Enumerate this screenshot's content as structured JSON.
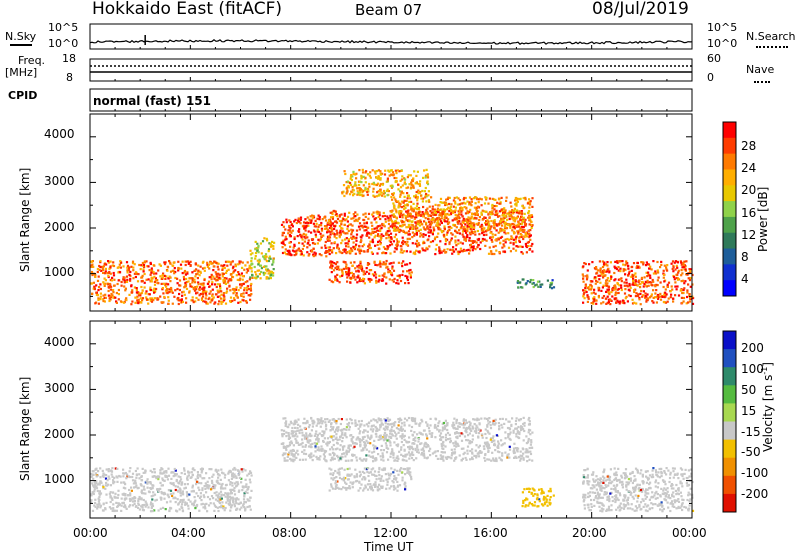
{
  "header": {
    "site": "Hokkaido East (fitACF)",
    "beam": "Beam 07",
    "date": "08/Jul/2019"
  },
  "noise_panel": {
    "left_label": "N.Sky",
    "right_label": "N.Search",
    "left_ticks": [
      "10^5",
      "10^0"
    ],
    "right_ticks": [
      "10^5",
      "10^0"
    ]
  },
  "freq_panel": {
    "left_label_1": "Freq.",
    "left_label_2": "[MHz]",
    "left_ticks": [
      "18",
      "8"
    ],
    "right_label": "Nave",
    "right_ticks": [
      "60",
      "0"
    ]
  },
  "cpid_panel": {
    "label": "CPID",
    "value": "normal (fast) 151"
  },
  "power_panel": {
    "ylabel": "Slant Range [km]",
    "yticks": [
      "4000",
      "3000",
      "2000",
      "1000"
    ],
    "colorbar_label": "Power [dB]",
    "colorbar_ticks": [
      "28",
      "24",
      "20",
      "16",
      "12",
      "8",
      "4"
    ],
    "colorbar_colors": [
      "#ff0000",
      "#ff3c00",
      "#ff7a00",
      "#ffae00",
      "#e8c800",
      "#8fd24a",
      "#4ea24a",
      "#2f7a5a",
      "#1e5e9a",
      "#1030d0",
      "#0000ff"
    ]
  },
  "velocity_panel": {
    "ylabel": "Slant Range [km]",
    "yticks": [
      "4000",
      "3000",
      "2000",
      "1000"
    ],
    "colorbar_label": "Velocity [m s",
    "colorbar_label_sup": "-1",
    "colorbar_label_end": "]",
    "colorbar_ticks": [
      "200",
      "100",
      "50",
      "15",
      "-15",
      "-50",
      "-100",
      "-200"
    ],
    "colorbar_colors": [
      "#0a10c8",
      "#2050c0",
      "#2e8a6a",
      "#55bb40",
      "#a8d850",
      "#c8c8c8",
      "#f2c000",
      "#f09000",
      "#f05000",
      "#e01000"
    ]
  },
  "xaxis": {
    "ticks": [
      "00:00",
      "04:00",
      "08:00",
      "12:00",
      "16:00",
      "20:00",
      "00:00"
    ],
    "label": "Time UT"
  },
  "chart_data": {
    "type": "heatmap",
    "title": "Hokkaido East (fitACF)",
    "subtitle": "Beam 07",
    "date": "08/Jul/2019",
    "x_unit": "hours UT",
    "xlim": [
      0,
      24
    ],
    "ylim_km": [
      180,
      4500
    ],
    "power_scale_db": [
      0,
      30
    ],
    "velocity_scale": [
      -200,
      200
    ],
    "power_bands": [
      {
        "t_start": 0.0,
        "t_end": 6.4,
        "range_km": [
          350,
          1300
        ],
        "power_db": 24
      },
      {
        "t_start": 6.3,
        "t_end": 7.3,
        "range_km": [
          900,
          1800
        ],
        "power_db": 17
      },
      {
        "t_start": 7.6,
        "t_end": 9.6,
        "range_km": [
          1400,
          2300
        ],
        "power_db": 26
      },
      {
        "t_start": 9.4,
        "t_end": 17.6,
        "range_km": [
          1450,
          2400
        ],
        "power_db": 25
      },
      {
        "t_start": 9.5,
        "t_end": 12.8,
        "range_km": [
          800,
          1300
        ],
        "power_db": 26
      },
      {
        "t_start": 10.0,
        "t_end": 13.5,
        "range_km": [
          2700,
          3300
        ],
        "power_db": 20
      },
      {
        "t_start": 12.0,
        "t_end": 17.6,
        "range_km": [
          1950,
          2700
        ],
        "power_db": 22
      },
      {
        "t_start": 17.0,
        "t_end": 18.5,
        "range_km": [
          700,
          900
        ],
        "power_db": 10
      },
      {
        "t_start": 19.6,
        "t_end": 24.0,
        "range_km": [
          350,
          1300
        ],
        "power_db": 25
      }
    ],
    "velocity_bands": [
      {
        "t_start": 0.0,
        "t_end": 6.4,
        "range_km": [
          350,
          1300
        ],
        "velocity": 0
      },
      {
        "t_start": 7.6,
        "t_end": 17.6,
        "range_km": [
          1450,
          2400
        ],
        "velocity": 0
      },
      {
        "t_start": 9.5,
        "t_end": 12.8,
        "range_km": [
          800,
          1300
        ],
        "velocity": 0
      },
      {
        "t_start": 17.2,
        "t_end": 18.5,
        "range_km": [
          450,
          850
        ],
        "velocity": -70
      },
      {
        "t_start": 19.6,
        "t_end": 24.0,
        "range_km": [
          350,
          1300
        ],
        "velocity": 0
      }
    ]
  }
}
